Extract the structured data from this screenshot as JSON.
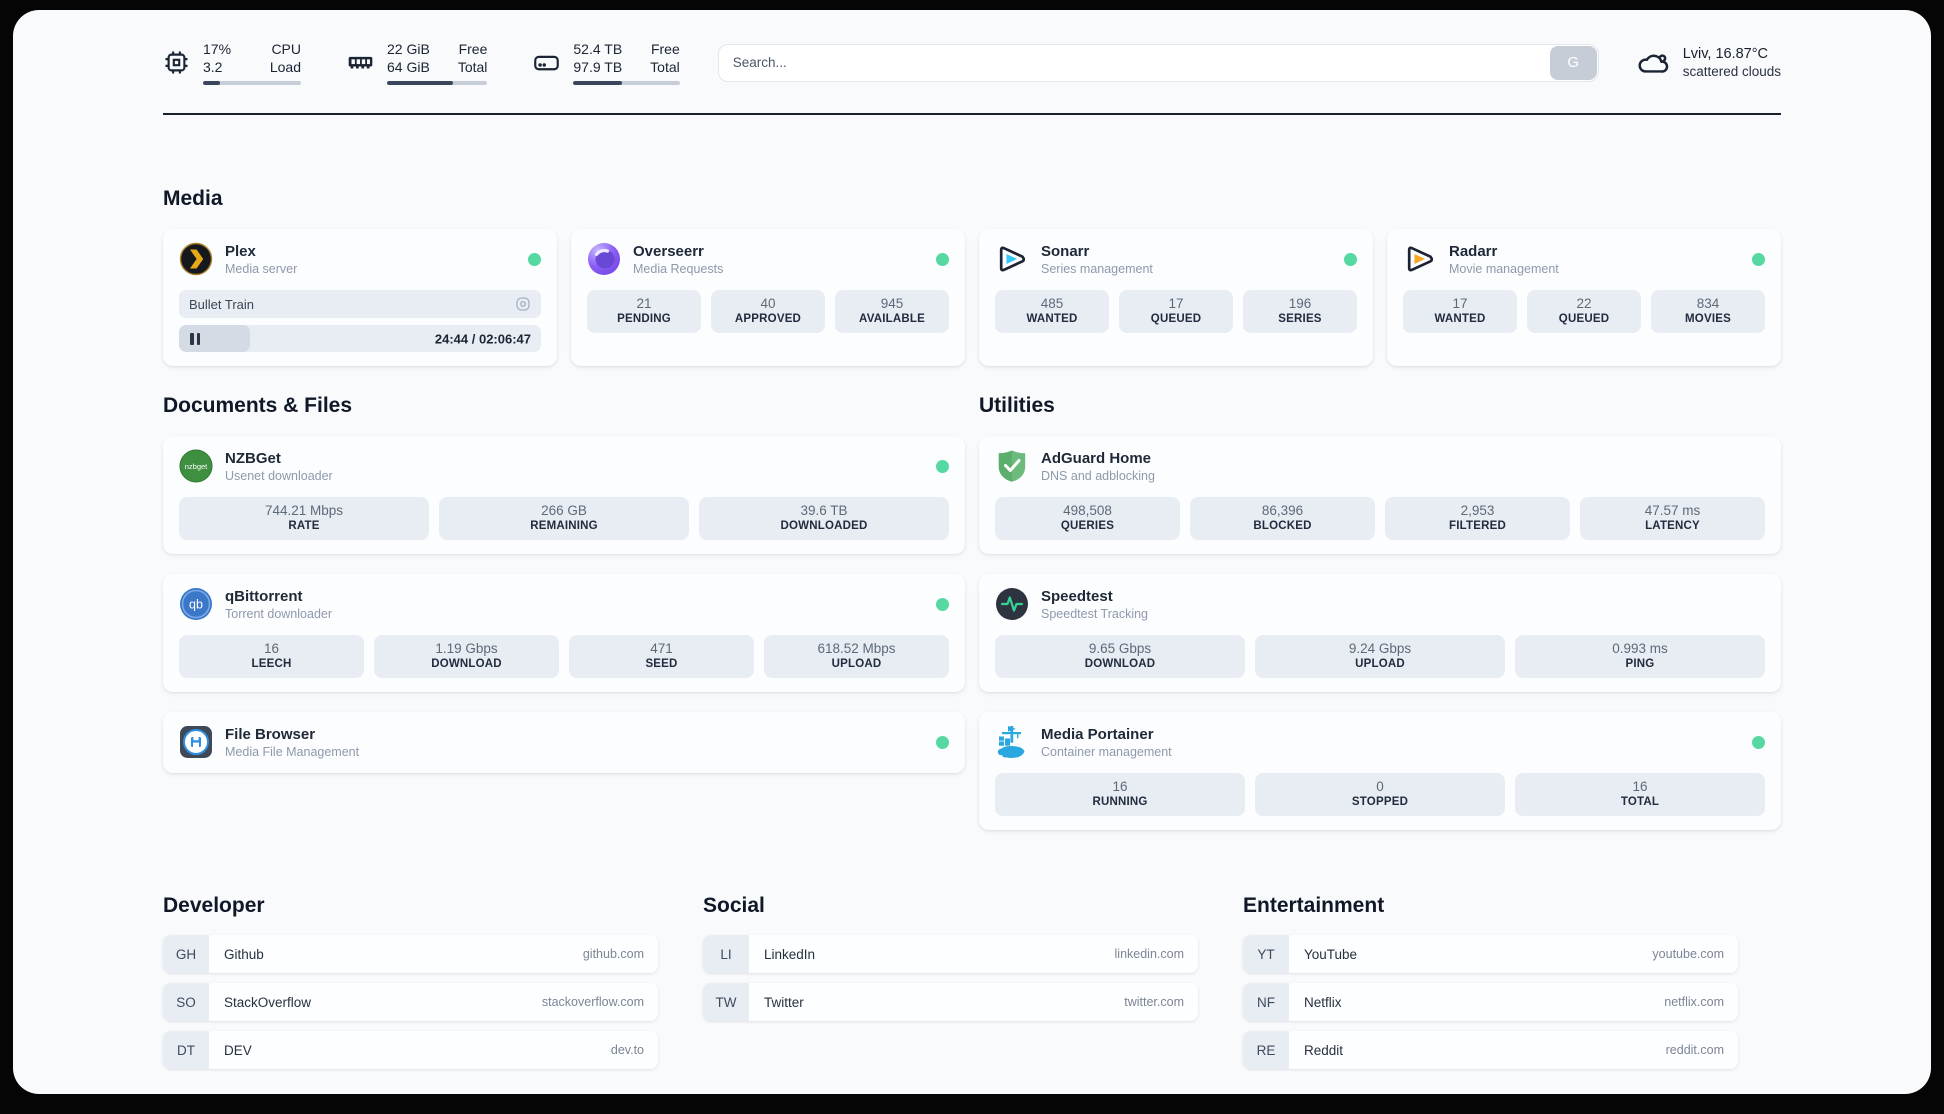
{
  "header": {
    "stats": [
      {
        "value_top": "17%",
        "value_bottom": "3.2",
        "label_top": "CPU",
        "label_bottom": "Load",
        "progress": 17
      },
      {
        "value_top": "22 GiB",
        "value_bottom": "64 GiB",
        "label_top": "Free",
        "label_bottom": "Total",
        "progress": 66
      },
      {
        "value_top": "52.4 TB",
        "value_bottom": "97.9 TB",
        "label_top": "Free",
        "label_bottom": "Total",
        "progress": 46
      }
    ],
    "search": {
      "placeholder": "Search...",
      "button_label": "G"
    },
    "weather": {
      "location": "Lviv, 16.87°C",
      "condition": "scattered clouds"
    }
  },
  "media": {
    "title": "Media",
    "plex": {
      "title": "Plex",
      "subtitle": "Media server",
      "now_playing": "Bullet Train",
      "time": "24:44 / 02:06:47",
      "progress": 19.5
    },
    "overseerr": {
      "title": "Overseerr",
      "subtitle": "Media Requests",
      "stats": [
        {
          "value": "21",
          "label": "PENDING"
        },
        {
          "value": "40",
          "label": "APPROVED"
        },
        {
          "value": "945",
          "label": "AVAILABLE"
        }
      ]
    },
    "sonarr": {
      "title": "Sonarr",
      "subtitle": "Series management",
      "stats": [
        {
          "value": "485",
          "label": "WANTED"
        },
        {
          "value": "17",
          "label": "QUEUED"
        },
        {
          "value": "196",
          "label": "SERIES"
        }
      ]
    },
    "radarr": {
      "title": "Radarr",
      "subtitle": "Movie management",
      "stats": [
        {
          "value": "17",
          "label": "WANTED"
        },
        {
          "value": "22",
          "label": "QUEUED"
        },
        {
          "value": "834",
          "label": "MOVIES"
        }
      ]
    }
  },
  "documents": {
    "title": "Documents & Files",
    "nzbget": {
      "title": "NZBGet",
      "subtitle": "Usenet downloader",
      "stats": [
        {
          "value": "744.21 Mbps",
          "label": "RATE"
        },
        {
          "value": "266 GB",
          "label": "REMAINING"
        },
        {
          "value": "39.6 TB",
          "label": "DOWNLOADED"
        }
      ]
    },
    "qbittorrent": {
      "title": "qBittorrent",
      "subtitle": "Torrent downloader",
      "stats": [
        {
          "value": "16",
          "label": "LEECH"
        },
        {
          "value": "1.19 Gbps",
          "label": "DOWNLOAD"
        },
        {
          "value": "471",
          "label": "SEED"
        },
        {
          "value": "618.52 Mbps",
          "label": "UPLOAD"
        }
      ]
    },
    "filebrowser": {
      "title": "File Browser",
      "subtitle": "Media File Management"
    }
  },
  "utilities": {
    "title": "Utilities",
    "adguard": {
      "title": "AdGuard Home",
      "subtitle": "DNS and adblocking",
      "stats": [
        {
          "value": "498,508",
          "label": "QUERIES"
        },
        {
          "value": "86,396",
          "label": "BLOCKED"
        },
        {
          "value": "2,953",
          "label": "FILTERED"
        },
        {
          "value": "47.57 ms",
          "label": "LATENCY"
        }
      ]
    },
    "speedtest": {
      "title": "Speedtest",
      "subtitle": "Speedtest Tracking",
      "stats": [
        {
          "value": "9.65 Gbps",
          "label": "DOWNLOAD"
        },
        {
          "value": "9.24 Gbps",
          "label": "UPLOAD"
        },
        {
          "value": "0.993 ms",
          "label": "PING"
        }
      ]
    },
    "portainer": {
      "title": "Media Portainer",
      "subtitle": "Container management",
      "stats": [
        {
          "value": "16",
          "label": "RUNNING"
        },
        {
          "value": "0",
          "label": "STOPPED"
        },
        {
          "value": "16",
          "label": "TOTAL"
        }
      ]
    }
  },
  "bookmarks": {
    "developer": {
      "title": "Developer",
      "items": [
        {
          "abbr": "GH",
          "name": "Github",
          "url": "github.com"
        },
        {
          "abbr": "SO",
          "name": "StackOverflow",
          "url": "stackoverflow.com"
        },
        {
          "abbr": "DT",
          "name": "DEV",
          "url": "dev.to"
        }
      ]
    },
    "social": {
      "title": "Social",
      "items": [
        {
          "abbr": "LI",
          "name": "LinkedIn",
          "url": "linkedin.com"
        },
        {
          "abbr": "TW",
          "name": "Twitter",
          "url": "twitter.com"
        }
      ]
    },
    "entertainment": {
      "title": "Entertainment",
      "items": [
        {
          "abbr": "YT",
          "name": "YouTube",
          "url": "youtube.com"
        },
        {
          "abbr": "NF",
          "name": "Netflix",
          "url": "netflix.com"
        },
        {
          "abbr": "RE",
          "name": "Reddit",
          "url": "reddit.com"
        }
      ]
    }
  },
  "icon_labels": {
    "nzbget": "nzbget",
    "qbittorrent": "qb"
  },
  "colors": {
    "status_online": "#55d8a2",
    "plex_amber": "#e8a918",
    "sonarr_cyan": "#38c6f4",
    "radarr_yellow": "#f7a823"
  }
}
